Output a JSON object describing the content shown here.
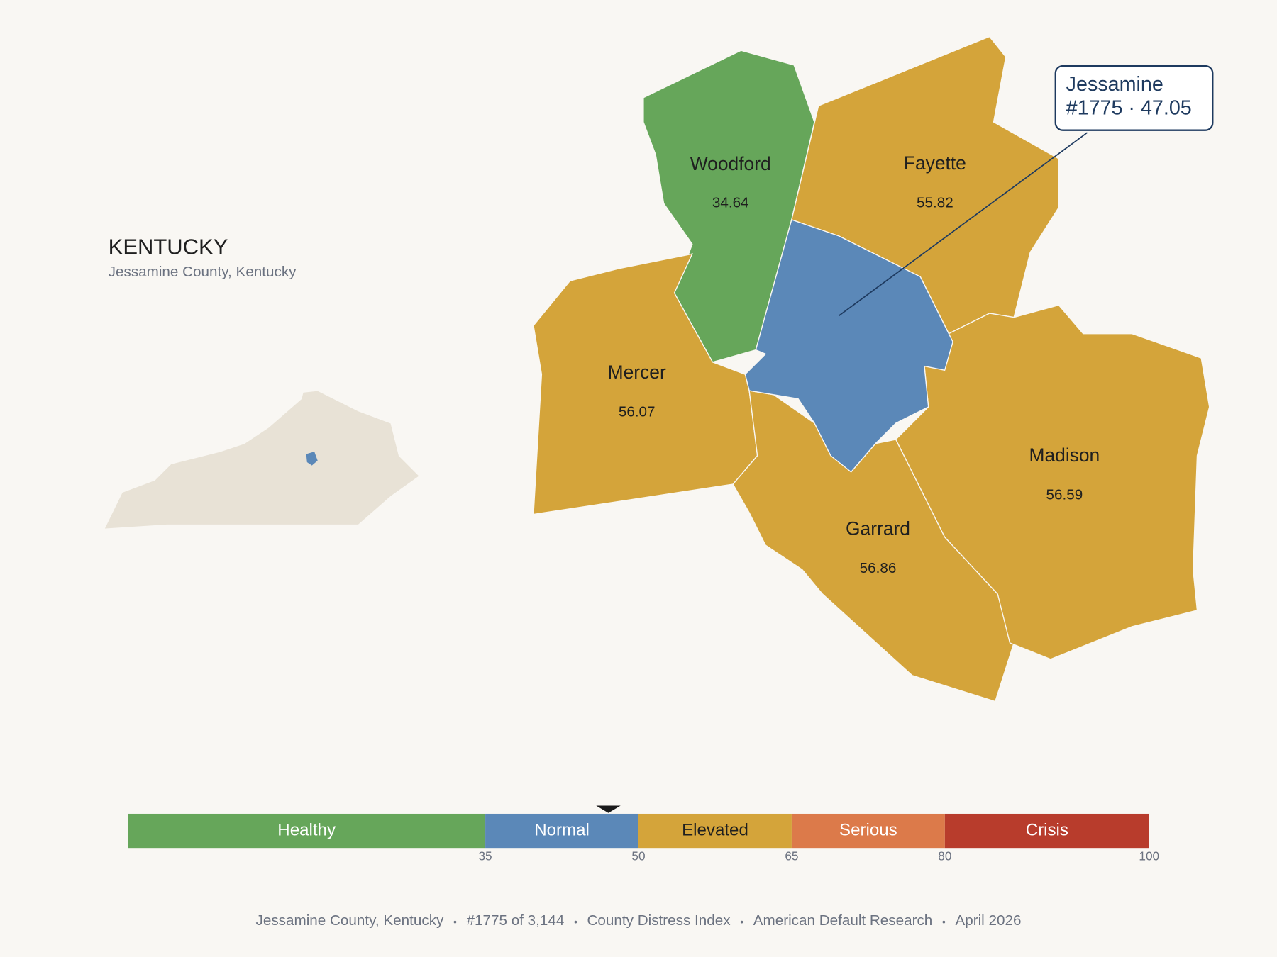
{
  "map": {
    "title": "KENTUCKY",
    "subtitle": "Jessamine County, Kentucky",
    "counties": [
      {
        "name": "Woodford",
        "value": 34.64
      },
      {
        "name": "Fayette",
        "value": 55.82
      },
      {
        "name": "Mercer",
        "value": 56.07
      },
      {
        "name": "Garrard",
        "value": 56.86
      },
      {
        "name": "Madison",
        "value": 56.59
      },
      {
        "name": "Jessamine",
        "value": 47.05
      }
    ],
    "highlight": {
      "name": "Jessamine",
      "label": "#1775 · 47.05",
      "value": 47.05,
      "stroke": "#1e3a5f"
    },
    "state_fill": "#e8e2d6",
    "scale": {
      "lim": [
        0,
        100
      ],
      "ticks": [
        35,
        50,
        65,
        80,
        100
      ],
      "bands": [
        {
          "label": "Healthy",
          "color": "#66a65a",
          "label_color": "#ffffff"
        },
        {
          "label": "Normal",
          "color": "#5b88b8",
          "label_color": "#ffffff"
        },
        {
          "label": "Elevated",
          "color": "#d4a43a",
          "label_color": "#1f1f1f"
        },
        {
          "label": "Serious",
          "color": "#dc7a4a",
          "label_color": "#ffffff"
        },
        {
          "label": "Crisis",
          "color": "#b83c2c",
          "label_color": "#ffffff"
        }
      ]
    },
    "footer": [
      "Jessamine County, Kentucky",
      "#1775 of 3,144",
      "County Distress Index",
      "American Default Research",
      "April 2026"
    ]
  }
}
